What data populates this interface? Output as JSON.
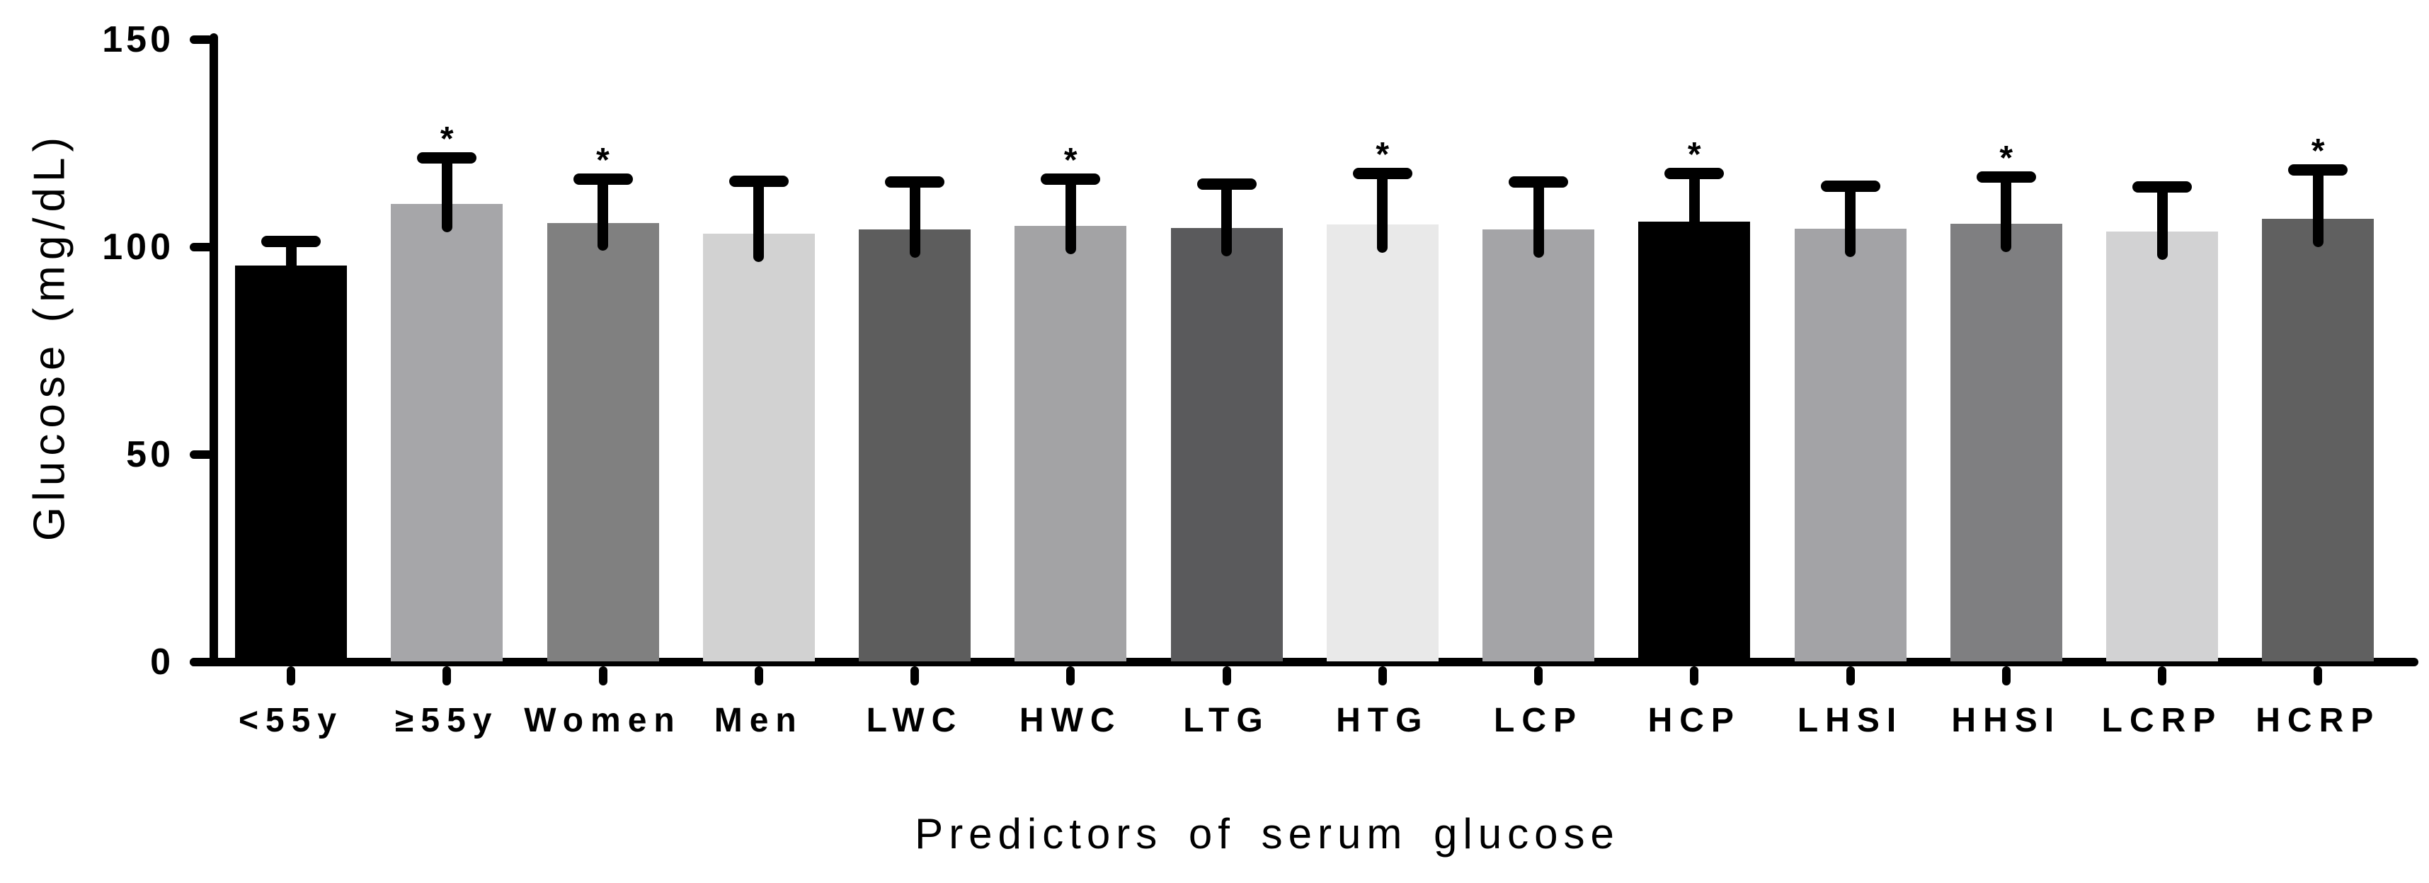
{
  "figure": {
    "background": "#ffffff",
    "axis_color": "#000000",
    "text_color": "#000000"
  },
  "chart_data": {
    "type": "bar",
    "title": "",
    "xlabel": "Predictors of serum glucose",
    "ylabel": "Glucose (mg/dL)",
    "ylim": [
      0,
      150
    ],
    "yticks": [
      0,
      50,
      100,
      150
    ],
    "grid": false,
    "legend": false,
    "error_bars": "upper standard deviation, T-cap",
    "significance_marker": "*",
    "categories": [
      "<55y",
      "≥55y",
      "Women",
      "Men",
      "LWC",
      "HWC",
      "LTG",
      "HTG",
      "LCP",
      "HCP",
      "LHSI",
      "HHSI",
      "LCRP",
      "HCRP"
    ],
    "values": [
      95.4,
      110.4,
      105.8,
      103.2,
      104.2,
      105.1,
      104.5,
      105.4,
      104.2,
      106.1,
      104.4,
      105.6,
      103.7,
      106.8
    ],
    "errors": [
      7.3,
      12.4,
      11.9,
      14.0,
      12.8,
      12.6,
      12.0,
      13.7,
      12.7,
      13.0,
      11.6,
      12.5,
      12.1,
      13.1
    ],
    "significant": [
      false,
      true,
      true,
      false,
      false,
      true,
      false,
      true,
      false,
      true,
      false,
      true,
      false,
      true
    ],
    "bar_colors": [
      "#000000",
      "#a6a6a9",
      "#808080",
      "#d2d2d2",
      "#5d5d5d",
      "#a3a3a5",
      "#5a5a5c",
      "#e9e9e9",
      "#a4a4a7",
      "#000000",
      "#a3a3a6",
      "#7f7f81",
      "#d2d2d3",
      "#606060"
    ]
  }
}
